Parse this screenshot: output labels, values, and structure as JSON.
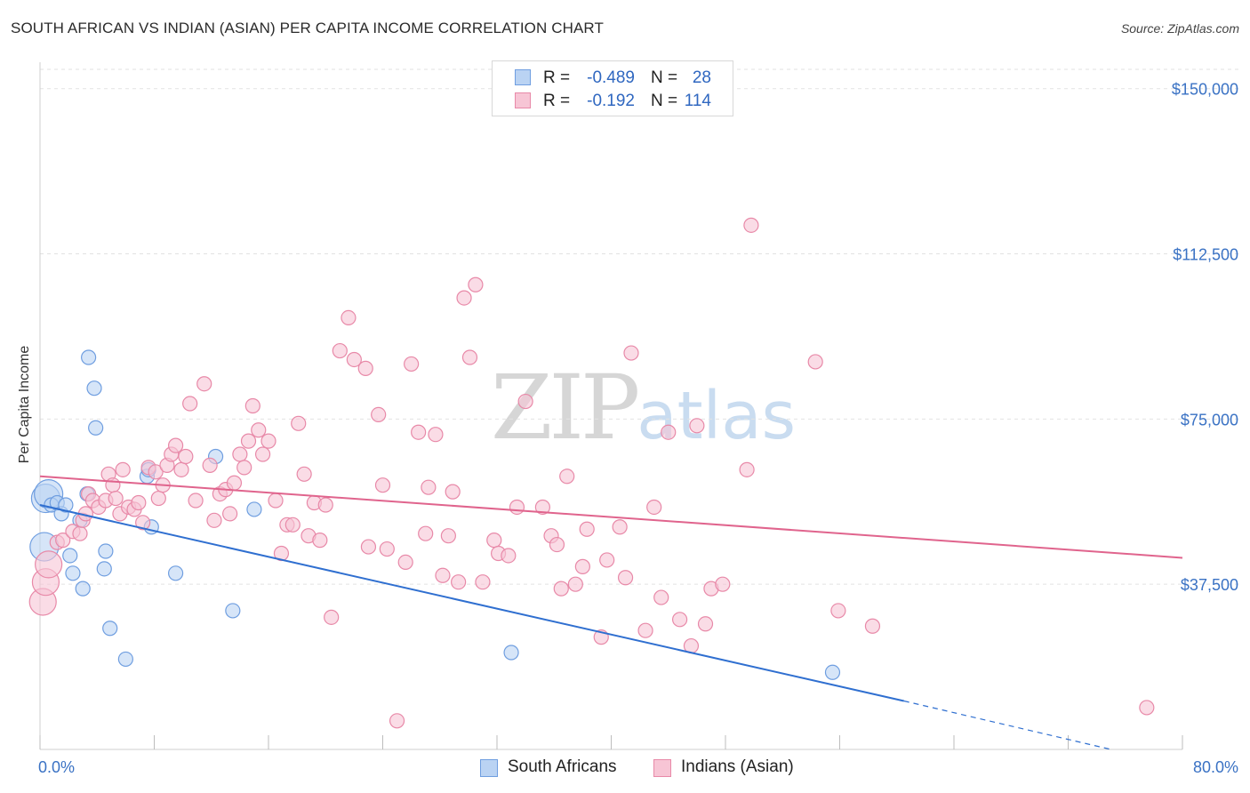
{
  "header": {
    "title": "SOUTH AFRICAN VS INDIAN (ASIAN) PER CAPITA INCOME CORRELATION CHART",
    "source": "Source: ZipAtlas.com"
  },
  "watermark": {
    "zip": "ZIP",
    "atlas": "atlas"
  },
  "stats": [
    {
      "r_label": "R =",
      "r_value": "-0.489",
      "n_label": "N =",
      "n_value": "28",
      "color": "#6f9ee0",
      "fill": "#bad3f3"
    },
    {
      "r_label": "R =",
      "r_value": "-0.192",
      "n_label": "N =",
      "n_value": "114",
      "color": "#e889a8",
      "fill": "#f7c5d5"
    }
  ],
  "chart_data": {
    "type": "scatter",
    "title": "SOUTH AFRICAN VS INDIAN (ASIAN) PER CAPITA INCOME CORRELATION CHART",
    "xlabel": "",
    "ylabel": "Per Capita Income",
    "xlim": [
      0,
      80
    ],
    "ylim": [
      0,
      156000
    ],
    "x_tick_labels": [
      "0.0%",
      "80.0%"
    ],
    "y_ticks": [
      37500,
      75000,
      112500,
      150000
    ],
    "y_tick_labels": [
      "$37,500",
      "$75,000",
      "$112,500",
      "$150,000"
    ],
    "grid": true,
    "legend_position": "bottom-center",
    "series": [
      {
        "name": "South Africans",
        "color": "#6f9ee0",
        "fill": "#bad3f3",
        "points": [
          [
            0.3,
            46000
          ],
          [
            0.4,
            57000
          ],
          [
            0.6,
            58000
          ],
          [
            0.8,
            55500
          ],
          [
            1.2,
            56000
          ],
          [
            1.5,
            53500
          ],
          [
            1.8,
            55500
          ],
          [
            2.1,
            44000
          ],
          [
            2.3,
            40000
          ],
          [
            2.8,
            52000
          ],
          [
            3.0,
            36500
          ],
          [
            3.3,
            58000
          ],
          [
            3.4,
            89000
          ],
          [
            3.8,
            82000
          ],
          [
            3.9,
            73000
          ],
          [
            4.5,
            41000
          ],
          [
            4.6,
            45000
          ],
          [
            4.9,
            27500
          ],
          [
            6.0,
            20500
          ],
          [
            7.5,
            62000
          ],
          [
            7.6,
            63500
          ],
          [
            7.8,
            50500
          ],
          [
            9.5,
            40000
          ],
          [
            12.3,
            66500
          ],
          [
            13.5,
            31500
          ],
          [
            15.0,
            54500
          ],
          [
            33.0,
            22000
          ],
          [
            55.5,
            17500
          ]
        ],
        "trend": {
          "x": [
            0,
            60.5
          ],
          "y": [
            55500,
            11000
          ]
        },
        "trend_dashed": {
          "x": [
            60.5,
            75.0
          ],
          "y": [
            11000,
            0
          ]
        }
      },
      {
        "name": "Indians (Asian)",
        "color": "#e889a8",
        "fill": "#f7c5d5",
        "points": [
          [
            0.2,
            33500
          ],
          [
            0.4,
            38000
          ],
          [
            0.6,
            42000
          ],
          [
            1.2,
            47000
          ],
          [
            1.6,
            47500
          ],
          [
            2.3,
            49500
          ],
          [
            2.8,
            49000
          ],
          [
            3.0,
            52000
          ],
          [
            3.2,
            53500
          ],
          [
            3.4,
            58000
          ],
          [
            3.7,
            56500
          ],
          [
            4.1,
            55000
          ],
          [
            4.6,
            56500
          ],
          [
            4.8,
            62500
          ],
          [
            5.1,
            60000
          ],
          [
            5.3,
            57000
          ],
          [
            5.6,
            53500
          ],
          [
            5.8,
            63500
          ],
          [
            6.2,
            55000
          ],
          [
            6.6,
            54500
          ],
          [
            6.9,
            56000
          ],
          [
            7.2,
            51500
          ],
          [
            7.6,
            64000
          ],
          [
            8.1,
            63000
          ],
          [
            8.3,
            57000
          ],
          [
            8.6,
            60000
          ],
          [
            8.9,
            64500
          ],
          [
            9.2,
            67000
          ],
          [
            9.5,
            69000
          ],
          [
            9.9,
            63500
          ],
          [
            10.2,
            66500
          ],
          [
            10.5,
            78500
          ],
          [
            10.9,
            56500
          ],
          [
            11.5,
            83000
          ],
          [
            11.9,
            64500
          ],
          [
            12.2,
            52000
          ],
          [
            12.6,
            58000
          ],
          [
            13.0,
            59000
          ],
          [
            13.3,
            53500
          ],
          [
            13.6,
            60500
          ],
          [
            14.0,
            67000
          ],
          [
            14.3,
            64000
          ],
          [
            14.6,
            70000
          ],
          [
            14.9,
            78000
          ],
          [
            15.3,
            72500
          ],
          [
            15.6,
            67000
          ],
          [
            16.0,
            70000
          ],
          [
            16.5,
            56500
          ],
          [
            16.9,
            44500
          ],
          [
            17.3,
            51000
          ],
          [
            17.7,
            51000
          ],
          [
            18.1,
            74000
          ],
          [
            18.5,
            62500
          ],
          [
            18.8,
            48500
          ],
          [
            19.2,
            56000
          ],
          [
            19.6,
            47500
          ],
          [
            20.0,
            55500
          ],
          [
            20.4,
            30000
          ],
          [
            21.0,
            90500
          ],
          [
            21.6,
            98000
          ],
          [
            22.0,
            88500
          ],
          [
            22.8,
            86500
          ],
          [
            23.0,
            46000
          ],
          [
            23.7,
            76000
          ],
          [
            24.0,
            60000
          ],
          [
            24.3,
            45500
          ],
          [
            25.0,
            6500
          ],
          [
            25.6,
            42500
          ],
          [
            26.0,
            87500
          ],
          [
            26.5,
            72000
          ],
          [
            27.0,
            49000
          ],
          [
            27.2,
            59500
          ],
          [
            27.7,
            71500
          ],
          [
            28.2,
            39500
          ],
          [
            28.6,
            48500
          ],
          [
            28.9,
            58500
          ],
          [
            29.3,
            38000
          ],
          [
            29.7,
            102500
          ],
          [
            30.1,
            89000
          ],
          [
            30.5,
            105500
          ],
          [
            31.0,
            38000
          ],
          [
            31.8,
            47500
          ],
          [
            32.1,
            44500
          ],
          [
            32.8,
            44000
          ],
          [
            33.4,
            55000
          ],
          [
            34.0,
            79000
          ],
          [
            35.2,
            55000
          ],
          [
            35.8,
            48500
          ],
          [
            36.2,
            46500
          ],
          [
            36.5,
            36500
          ],
          [
            36.9,
            62000
          ],
          [
            37.5,
            37500
          ],
          [
            38.0,
            41500
          ],
          [
            38.3,
            50000
          ],
          [
            39.3,
            25500
          ],
          [
            39.7,
            43000
          ],
          [
            40.6,
            50500
          ],
          [
            41.0,
            39000
          ],
          [
            41.4,
            90000
          ],
          [
            42.4,
            27000
          ],
          [
            43.0,
            55000
          ],
          [
            43.5,
            34500
          ],
          [
            44.0,
            72000
          ],
          [
            44.8,
            29500
          ],
          [
            45.6,
            23500
          ],
          [
            46.0,
            73500
          ],
          [
            46.6,
            28500
          ],
          [
            47.0,
            36500
          ],
          [
            47.8,
            37500
          ],
          [
            49.5,
            63500
          ],
          [
            49.8,
            119000
          ],
          [
            54.3,
            88000
          ],
          [
            55.9,
            31500
          ],
          [
            58.3,
            28000
          ],
          [
            77.5,
            9500
          ]
        ],
        "trend": {
          "x": [
            0,
            80
          ],
          "y": [
            62000,
            43500
          ]
        }
      }
    ]
  }
}
